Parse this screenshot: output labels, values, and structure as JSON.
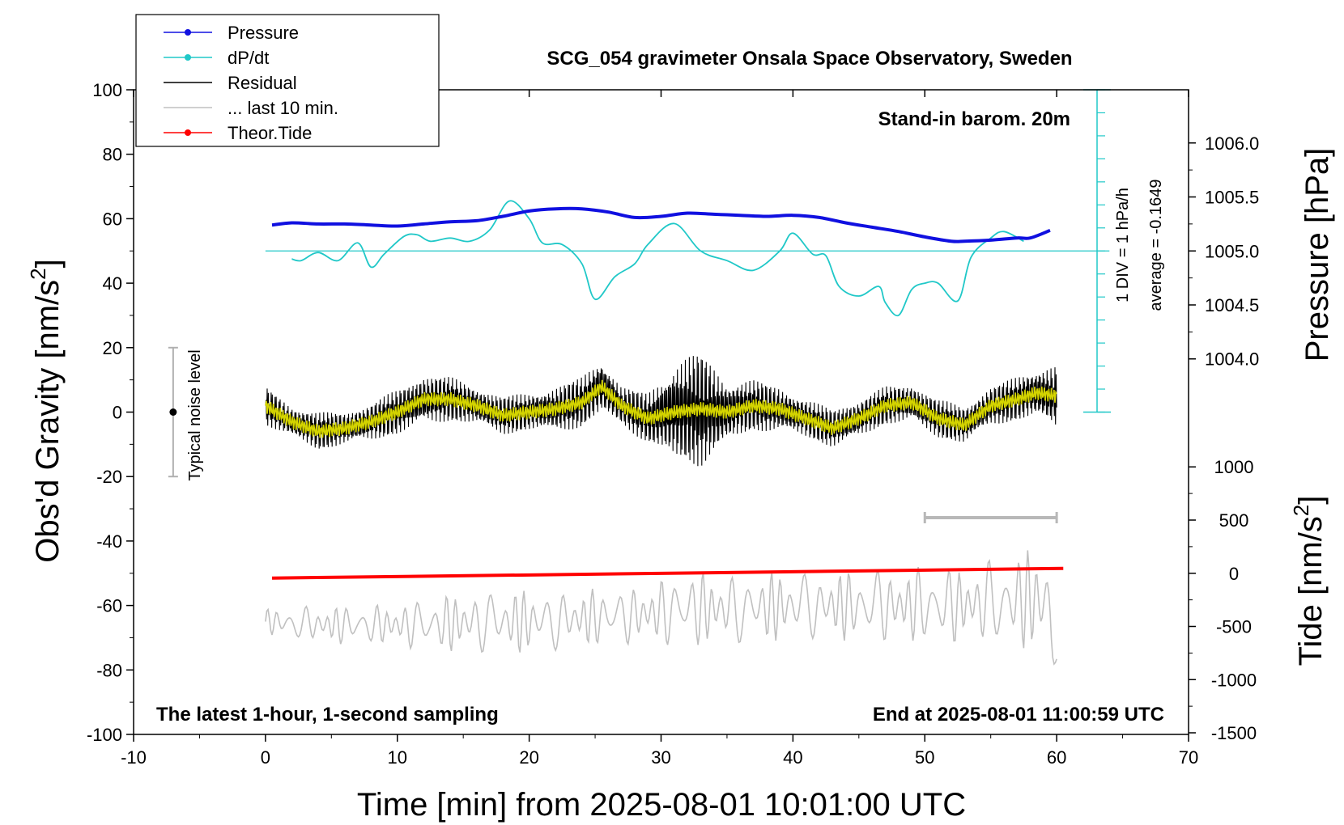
{
  "chart_data": {
    "type": "line",
    "title": "SCG_054 gravimeter Onsala Space Observatory, Sweden",
    "xlabel": "Time [min] from 2025-08-01 10:01:00 UTC",
    "ylabel_main": "Obs'd Gravity [nm/s",
    "ylabel_main_sup": "2",
    "ylabel_main_close": "]",
    "ylabel_pressure": "Pressure [hPa]",
    "ylabel_tide": "Tide [nm/s",
    "ylabel_tide_sup": "2",
    "ylabel_tide_close": "]",
    "xlim": [
      -10,
      70
    ],
    "ylim": [
      -100,
      100
    ],
    "x_ticks": [
      "-10",
      "0",
      "10",
      "20",
      "30",
      "40",
      "50",
      "60",
      "70"
    ],
    "y_ticks": [
      "100",
      "80",
      "60",
      "40",
      "20",
      "0",
      "-20",
      "-40",
      "-60",
      "-80",
      "-100"
    ],
    "pressure_ticks": [
      "1006.0",
      "1005.5",
      "1005.0",
      "1004.5",
      "1004.0"
    ],
    "pressure_tick_values": [
      1006.0,
      1005.5,
      1005.0,
      1004.5,
      1004.0
    ],
    "tide_ticks": [
      "1000",
      "500",
      "0",
      "-500",
      "-1000",
      "-1500"
    ],
    "tide_tick_values": [
      1000,
      500,
      0,
      -500,
      -1000,
      -1500
    ],
    "legend": [
      {
        "label": "Pressure",
        "color": "#1010e0",
        "marker": true
      },
      {
        "label": "dP/dt",
        "color": "#20c8c8",
        "marker": true
      },
      {
        "label": "Residual",
        "color": "#000000",
        "marker": false
      },
      {
        "label": "... last 10 min.",
        "color": "#c0c0c0",
        "marker": false
      },
      {
        "label": "Theor.Tide",
        "color": "#ff0000",
        "marker": true
      }
    ],
    "annotations": {
      "barometer": "Stand-in barom. 20m",
      "bottom_left": "The latest 1-hour, 1-second sampling",
      "bottom_right": "End at 2025-08-01 11:00:59 UTC",
      "noise": "Typical noise level",
      "dpdt_scale": "1 DIV = 1 hPa/h",
      "dpdt_average": "average = -0.1649"
    },
    "noise_bar": {
      "x": -7,
      "center": 0,
      "half_range": 20
    },
    "last10_bar": {
      "x_start": 50,
      "x_end": 60
    },
    "series": [
      {
        "name": "Pressure",
        "unit": "hPa",
        "color": "#1010e0",
        "x": [
          0.5,
          2,
          4,
          6,
          8,
          10,
          12,
          14,
          16,
          18,
          20,
          22,
          24,
          26,
          28,
          30,
          32,
          34,
          36,
          38,
          40,
          42,
          44,
          46,
          48,
          50,
          52,
          53,
          55,
          57,
          58,
          59.5
        ],
        "values": [
          1005.24,
          1005.26,
          1005.25,
          1005.25,
          1005.24,
          1005.23,
          1005.25,
          1005.27,
          1005.28,
          1005.32,
          1005.37,
          1005.39,
          1005.39,
          1005.36,
          1005.31,
          1005.32,
          1005.35,
          1005.34,
          1005.33,
          1005.32,
          1005.33,
          1005.31,
          1005.26,
          1005.22,
          1005.18,
          1005.13,
          1005.09,
          1005.09,
          1005.1,
          1005.12,
          1005.12,
          1005.19
        ]
      },
      {
        "name": "dP/dt",
        "unit": "hPa/h (baseline 50, 1 DIV = 1 hPa/h)",
        "color": "#20c8c8",
        "x": [
          2,
          2.7,
          4,
          5.5,
          7,
          8,
          9,
          10.5,
          11.5,
          12.5,
          14,
          15.5,
          17,
          18.5,
          20,
          21,
          22.5,
          24,
          25,
          26.5,
          28,
          29,
          31,
          33,
          35,
          37,
          39,
          40,
          41.5,
          42.5,
          43.5,
          45,
          46.5,
          47,
          48,
          49,
          50,
          51,
          52.5,
          53.5,
          55,
          56,
          57.5
        ],
        "values": [
          47.5,
          47,
          49.5,
          47,
          52.5,
          45,
          49,
          54.5,
          55,
          53,
          54,
          53,
          56.5,
          65.5,
          60,
          52.5,
          52,
          46,
          35,
          42,
          46,
          52,
          58.5,
          50,
          47,
          44,
          50,
          55.5,
          49,
          48.5,
          39,
          36,
          39,
          34,
          30,
          38,
          40,
          40,
          34.5,
          48,
          54,
          56,
          53
        ]
      },
      {
        "name": "Residual",
        "unit": "nm/s2",
        "color": "#000000",
        "x": [
          0,
          2,
          4,
          6,
          8,
          10,
          12,
          14,
          16,
          18,
          20,
          22,
          24,
          25.5,
          27,
          29,
          31,
          33,
          35,
          37,
          39,
          41,
          43,
          45,
          47,
          49,
          51,
          53,
          55,
          57,
          58.5,
          60
        ],
        "envelope": [
          6,
          5,
          6,
          5,
          6,
          7,
          8,
          7,
          6,
          6,
          6,
          7,
          8,
          9,
          6,
          8,
          16,
          18,
          10,
          8,
          7,
          6,
          6,
          6,
          6,
          6,
          6,
          6,
          6,
          7,
          8,
          10
        ],
        "values": [
          2,
          -3,
          -6,
          -5,
          -3,
          0,
          4,
          4,
          2,
          -1,
          0,
          1,
          3,
          8,
          2,
          -2,
          0,
          1,
          0,
          2,
          1,
          -2,
          -5,
          -2,
          2,
          3,
          -2,
          -4,
          2,
          4,
          6,
          5
        ]
      },
      {
        "name": "Residual smoothed",
        "color": "#d4d400",
        "x": [
          0,
          2,
          4,
          6,
          8,
          10,
          12,
          14,
          16,
          18,
          20,
          22,
          24,
          25.5,
          27,
          29,
          31,
          33,
          35,
          37,
          39,
          41,
          43,
          45,
          47,
          49,
          51,
          53,
          55,
          57,
          58.5,
          60
        ],
        "values": [
          2,
          -3,
          -6,
          -5,
          -3,
          0,
          4,
          4,
          2,
          -1,
          0,
          1,
          3,
          8,
          2,
          -2,
          0,
          1,
          0,
          2,
          1,
          -2,
          -5,
          -2,
          2,
          3,
          -2,
          -4,
          2,
          4,
          6,
          5
        ]
      },
      {
        "name": "... last 10 min.",
        "unit": "nm/s2 (lower panel)",
        "color": "#c0c0c0",
        "x": [
          0,
          4,
          8,
          12,
          16,
          20,
          24,
          28,
          32,
          36,
          40,
          44,
          48,
          52,
          56,
          58,
          59.5,
          60
        ],
        "center": [
          -65,
          -66,
          -66,
          -66,
          -65,
          -65,
          -64,
          -63,
          -61,
          -61,
          -60,
          -60,
          -60,
          -60,
          -59,
          -58,
          -60,
          -75
        ],
        "amplitude": [
          4,
          6,
          6,
          8,
          10,
          10,
          9,
          9,
          12,
          11,
          11,
          11,
          12,
          12,
          14,
          16,
          20,
          8
        ]
      },
      {
        "name": "Theor.Tide",
        "unit": "nm/s2",
        "color": "#ff0000",
        "x": [
          0.5,
          60.5
        ],
        "values": [
          -51.5,
          -48.5
        ]
      }
    ]
  }
}
